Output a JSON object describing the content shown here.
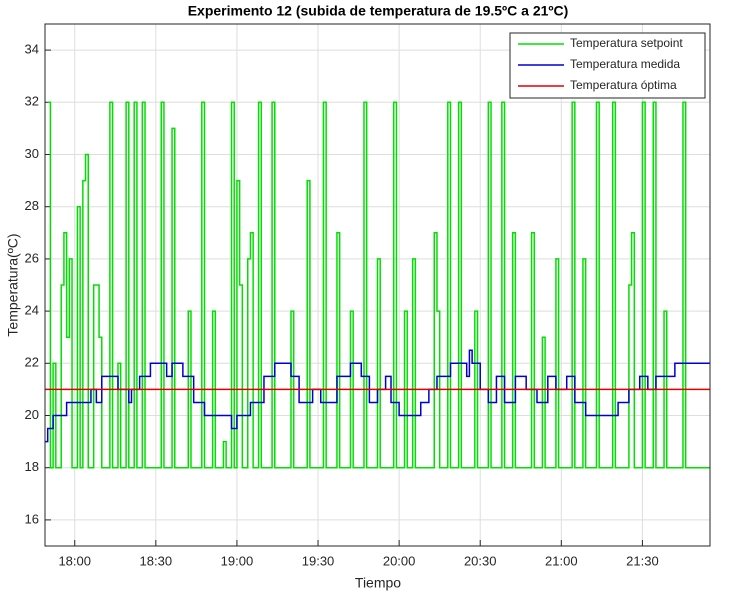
{
  "chart_data": {
    "type": "line",
    "step": true,
    "title": "Experimento 12 (subida de temperatura de 19.5ºC a 21ºC)",
    "x_label": "Tiempo",
    "y_label": "Temperatura(ºC)",
    "xlim": [
      "17:49",
      "21:55"
    ],
    "xticks": [
      "18:00",
      "18:30",
      "19:00",
      "19:30",
      "20:00",
      "20:30",
      "21:00",
      "21:30"
    ],
    "ylim": [
      15,
      35
    ],
    "yticks": [
      16,
      18,
      20,
      22,
      24,
      26,
      28,
      30,
      32,
      34
    ],
    "grid": true,
    "legend": "upper right",
    "series": [
      {
        "name": "Temperatura setpoint",
        "color": "#00e000",
        "x": [
          "17:50",
          "17:51",
          "17:52",
          "17:53",
          "17:55",
          "17:56",
          "17:57",
          "17:58",
          "17:59",
          "18:01",
          "18:02",
          "18:03",
          "18:04",
          "18:05",
          "18:07",
          "18:09",
          "18:10",
          "18:13",
          "18:14",
          "18:16",
          "18:17",
          "18:19",
          "18:20",
          "18:22",
          "18:23",
          "18:25",
          "18:26",
          "18:32",
          "18:33",
          "18:36",
          "18:37",
          "18:42",
          "18:43",
          "18:47",
          "18:48",
          "18:51",
          "18:52",
          "18:55",
          "18:56",
          "18:58",
          "18:59",
          "19:00",
          "19:01",
          "19:02",
          "19:04",
          "19:05",
          "19:06",
          "19:08",
          "19:09",
          "19:13",
          "19:14",
          "19:20",
          "19:21",
          "19:26",
          "19:27",
          "19:32",
          "19:33",
          "19:37",
          "19:38",
          "19:42",
          "19:43",
          "19:47",
          "19:48",
          "19:52",
          "19:53",
          "19:58",
          "19:59",
          "20:02",
          "20:03",
          "20:05",
          "20:06",
          "20:13",
          "20:14",
          "20:15",
          "20:18",
          "20:19",
          "20:22",
          "20:23",
          "20:28",
          "20:29",
          "20:33",
          "20:34",
          "20:38",
          "20:39",
          "20:42",
          "20:43",
          "20:49",
          "20:50",
          "20:53",
          "20:54",
          "20:58",
          "20:59",
          "21:04",
          "21:05",
          "21:08",
          "21:09",
          "21:13",
          "21:14",
          "21:19",
          "21:20",
          "21:25",
          "21:26",
          "21:27",
          "21:30",
          "21:31",
          "21:34",
          "21:35",
          "21:38",
          "21:39",
          "21:45",
          "21:46",
          "21:55"
        ],
        "values": [
          32,
          18,
          22,
          18,
          25,
          27,
          23,
          26,
          18,
          28,
          18,
          29,
          30,
          18,
          25,
          23,
          18,
          32,
          18,
          22,
          18,
          32,
          18,
          32,
          18,
          32,
          18,
          32,
          18,
          31,
          18,
          24,
          18,
          32,
          18,
          24,
          18,
          19,
          18,
          32,
          18,
          29,
          25,
          18,
          26,
          27,
          18,
          32,
          18,
          32,
          18,
          24,
          18,
          29,
          18,
          32,
          18,
          27,
          18,
          24,
          18,
          32,
          18,
          26,
          18,
          32,
          18,
          24,
          18,
          26,
          18,
          27,
          24,
          18,
          32,
          18,
          32,
          18,
          24,
          18,
          32,
          18,
          32,
          18,
          27,
          18,
          27,
          18,
          23,
          18,
          26,
          18,
          32,
          18,
          26,
          18,
          32,
          18,
          32,
          18,
          25,
          27,
          18,
          32,
          18,
          32,
          18,
          24,
          18,
          32,
          18,
          18
        ]
      },
      {
        "name": "Temperatura medida",
        "color": "#0000d0",
        "x": [
          "17:49",
          "17:50",
          "17:52",
          "17:57",
          "18:06",
          "18:08",
          "18:10",
          "18:16",
          "18:20",
          "18:21",
          "18:24",
          "18:28",
          "18:34",
          "18:36",
          "18:40",
          "18:44",
          "18:48",
          "18:58",
          "19:00",
          "19:05",
          "19:10",
          "19:14",
          "19:20",
          "19:23",
          "19:28",
          "19:31",
          "19:37",
          "19:42",
          "19:46",
          "19:49",
          "19:52",
          "19:55",
          "19:57",
          "20:00",
          "20:08",
          "20:11",
          "20:14",
          "20:19",
          "20:25",
          "20:26",
          "20:27",
          "20:30",
          "20:33",
          "20:36",
          "20:39",
          "20:43",
          "20:47",
          "20:51",
          "20:55",
          "20:58",
          "21:02",
          "21:05",
          "21:09",
          "21:21",
          "21:25",
          "21:29",
          "21:32",
          "21:35",
          "21:42",
          "21:55"
        ],
        "values": [
          19,
          19.5,
          20,
          20.5,
          21,
          20.5,
          21.5,
          21,
          20.5,
          21,
          21.5,
          22,
          21.5,
          22,
          21.5,
          20.5,
          20,
          19.5,
          20,
          20.5,
          21.5,
          22,
          21.5,
          20.5,
          21,
          20.5,
          21.5,
          22,
          21.5,
          20.5,
          21,
          21.5,
          20.5,
          20,
          20.5,
          21,
          21.5,
          22,
          21.5,
          22.5,
          22,
          21,
          20.5,
          21.5,
          20.5,
          21.5,
          21,
          20.5,
          21.5,
          21,
          21.5,
          20.5,
          20,
          20.5,
          21,
          21.5,
          21,
          21.5,
          22,
          22
        ]
      },
      {
        "name": "Temperatura óptima",
        "color": "#e00000",
        "x": [
          "17:49",
          "21:55"
        ],
        "values": [
          21,
          21
        ]
      }
    ]
  }
}
